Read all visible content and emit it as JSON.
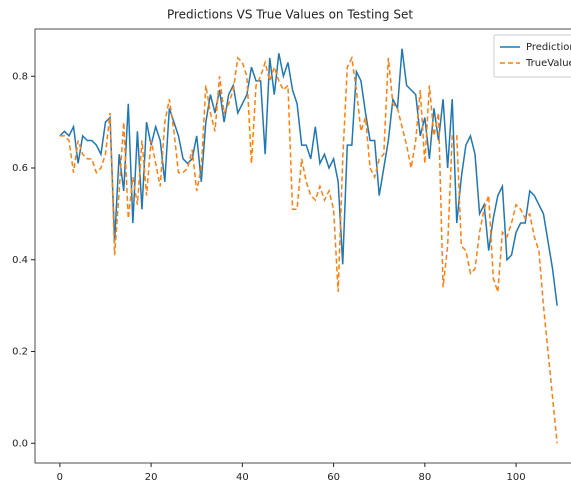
{
  "chart_data": {
    "type": "line",
    "title": "Predictions VS True Values on Testing Set",
    "x": [
      0,
      1,
      2,
      3,
      4,
      5,
      6,
      7,
      8,
      9,
      10,
      11,
      12,
      13,
      14,
      15,
      16,
      17,
      18,
      19,
      20,
      21,
      22,
      23,
      24,
      25,
      26,
      27,
      28,
      29,
      30,
      31,
      32,
      33,
      34,
      35,
      36,
      37,
      38,
      39,
      40,
      41,
      42,
      43,
      44,
      45,
      46,
      47,
      48,
      49,
      50,
      51,
      52,
      53,
      54,
      55,
      56,
      57,
      58,
      59,
      60,
      61,
      62,
      63,
      64,
      65,
      66,
      67,
      68,
      69,
      70,
      71,
      72,
      73,
      74,
      75,
      76,
      77,
      78,
      79,
      80,
      81,
      82,
      83,
      84,
      85,
      86,
      87,
      88,
      89,
      90,
      91,
      92,
      93,
      94,
      95,
      96,
      97,
      98,
      99,
      100,
      101,
      102,
      103,
      104,
      105,
      106,
      107,
      108,
      109
    ],
    "series": [
      {
        "name": "Predictions",
        "color": "#1f77b4",
        "dash": false,
        "values": [
          0.67,
          0.68,
          0.67,
          0.69,
          0.61,
          0.67,
          0.66,
          0.66,
          0.65,
          0.63,
          0.7,
          0.71,
          0.44,
          0.63,
          0.55,
          0.74,
          0.48,
          0.68,
          0.51,
          0.7,
          0.65,
          0.69,
          0.66,
          0.57,
          0.73,
          0.7,
          0.67,
          0.62,
          0.61,
          0.62,
          0.67,
          0.57,
          0.7,
          0.76,
          0.72,
          0.77,
          0.7,
          0.76,
          0.78,
          0.72,
          0.74,
          0.76,
          0.82,
          0.79,
          0.79,
          0.63,
          0.84,
          0.76,
          0.85,
          0.8,
          0.83,
          0.77,
          0.74,
          0.65,
          0.65,
          0.62,
          0.69,
          0.61,
          0.63,
          0.6,
          0.62,
          0.57,
          0.39,
          0.65,
          0.65,
          0.81,
          0.79,
          0.72,
          0.66,
          0.66,
          0.54,
          0.6,
          0.66,
          0.75,
          0.73,
          0.86,
          0.78,
          0.77,
          0.76,
          0.67,
          0.71,
          0.62,
          0.73,
          0.66,
          0.75,
          0.6,
          0.75,
          0.48,
          0.58,
          0.65,
          0.67,
          0.63,
          0.5,
          0.52,
          0.42,
          0.49,
          0.54,
          0.56,
          0.4,
          0.41,
          0.46,
          0.48,
          0.48,
          0.55,
          0.54,
          0.52,
          0.5,
          0.44,
          0.38,
          0.3
        ]
      },
      {
        "name": "TrueValues",
        "color": "#ff7f0e",
        "dash": true,
        "values": [
          0.67,
          0.67,
          0.66,
          0.59,
          0.66,
          0.63,
          0.62,
          0.62,
          0.59,
          0.6,
          0.63,
          0.72,
          0.41,
          0.55,
          0.7,
          0.49,
          0.58,
          0.52,
          0.66,
          0.54,
          0.66,
          0.61,
          0.56,
          0.7,
          0.75,
          0.68,
          0.59,
          0.59,
          0.6,
          0.64,
          0.55,
          0.6,
          0.78,
          0.72,
          0.68,
          0.8,
          0.72,
          0.74,
          0.77,
          0.84,
          0.83,
          0.8,
          0.61,
          0.78,
          0.8,
          0.83,
          0.79,
          0.82,
          0.79,
          0.77,
          0.78,
          0.51,
          0.51,
          0.62,
          0.57,
          0.54,
          0.53,
          0.56,
          0.53,
          0.55,
          0.51,
          0.33,
          0.62,
          0.82,
          0.84,
          0.77,
          0.68,
          0.71,
          0.6,
          0.58,
          0.62,
          0.63,
          0.84,
          0.74,
          0.73,
          0.69,
          0.65,
          0.6,
          0.66,
          0.77,
          0.61,
          0.78,
          0.67,
          0.72,
          0.34,
          0.43,
          0.67,
          0.67,
          0.43,
          0.42,
          0.37,
          0.38,
          0.46,
          0.51,
          0.54,
          0.36,
          0.33,
          0.46,
          0.45,
          0.48,
          0.52,
          0.51,
          0.49,
          0.5,
          0.45,
          0.42,
          0.3,
          0.2,
          0.1,
          0.0
        ]
      }
    ],
    "xlim": [
      -5.45,
      114.45
    ],
    "ylim": [
      -0.043,
      0.903
    ],
    "xticks": [
      0,
      20,
      40,
      60,
      80,
      100
    ],
    "yticks": [
      {
        "value": 0,
        "label": "0.0"
      },
      0.2,
      0.4,
      0.6,
      0.8
    ],
    "legend": "upper right"
  }
}
